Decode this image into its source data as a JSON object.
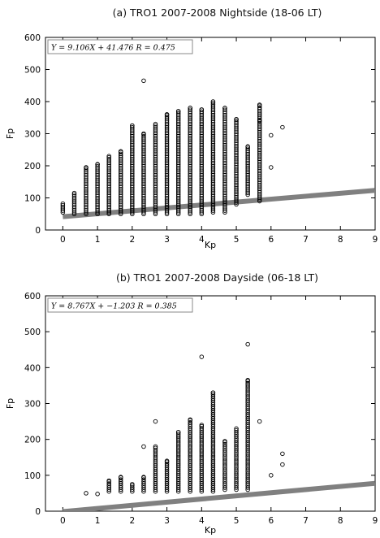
{
  "chart_data": [
    {
      "type": "scatter",
      "title": "(a)  TRO1   2007-2008   Nightside (18-06 LT)",
      "xlabel": "Kp",
      "ylabel": "Fp",
      "xlim": [
        -0.5,
        9
      ],
      "ylim": [
        0,
        600
      ],
      "xticks": [
        0,
        1,
        2,
        3,
        4,
        5,
        6,
        7,
        8,
        9
      ],
      "yticks": [
        0,
        100,
        200,
        300,
        400,
        500,
        600
      ],
      "grid": false,
      "annotation": "Y = 9.106X + 41.476     R = 0.475",
      "fit": {
        "slope": 9.106,
        "intercept": 41.476,
        "r": 0.475,
        "color": "#808080"
      },
      "columns": [
        {
          "x": 0.0,
          "min": 55,
          "max": 82
        },
        {
          "x": 0.33,
          "min": 50,
          "max": 115
        },
        {
          "x": 0.67,
          "min": 50,
          "max": 195
        },
        {
          "x": 1.0,
          "min": 50,
          "max": 205
        },
        {
          "x": 1.33,
          "min": 50,
          "max": 230
        },
        {
          "x": 1.67,
          "min": 50,
          "max": 245
        },
        {
          "x": 2.0,
          "min": 50,
          "max": 325
        },
        {
          "x": 2.33,
          "min": 50,
          "max": 300
        },
        {
          "x": 2.67,
          "min": 50,
          "max": 330
        },
        {
          "x": 3.0,
          "min": 50,
          "max": 360
        },
        {
          "x": 3.33,
          "min": 50,
          "max": 370
        },
        {
          "x": 3.67,
          "min": 50,
          "max": 380
        },
        {
          "x": 4.0,
          "min": 50,
          "max": 375
        },
        {
          "x": 4.33,
          "min": 55,
          "max": 400
        },
        {
          "x": 4.67,
          "min": 55,
          "max": 380
        },
        {
          "x": 5.0,
          "min": 80,
          "max": 345
        },
        {
          "x": 5.33,
          "min": 110,
          "max": 260
        },
        {
          "x": 5.67,
          "min": 90,
          "max": 390
        }
      ],
      "outliers": [
        {
          "x": 2.33,
          "y": 465
        },
        {
          "x": 6.0,
          "y": 195
        },
        {
          "x": 6.0,
          "y": 295
        },
        {
          "x": 6.33,
          "y": 320
        },
        {
          "x": 5.67,
          "y": 340
        }
      ],
      "marker": "open-circle",
      "marker_color": "#000000"
    },
    {
      "type": "scatter",
      "title": "(b)  TRO1   2007-2008   Dayside (06-18 LT)",
      "xlabel": "Kp",
      "ylabel": "Fp",
      "xlim": [
        -0.5,
        9
      ],
      "ylim": [
        0,
        600
      ],
      "xticks": [
        0,
        1,
        2,
        3,
        4,
        5,
        6,
        7,
        8,
        9
      ],
      "yticks": [
        0,
        100,
        200,
        300,
        400,
        500,
        600
      ],
      "grid": false,
      "annotation": "Y = 8.767X + −1.203     R = 0.385",
      "fit": {
        "slope": 8.767,
        "intercept": -1.203,
        "r": 0.385,
        "color": "#808080"
      },
      "columns": [
        {
          "x": 1.33,
          "min": 55,
          "max": 85
        },
        {
          "x": 1.67,
          "min": 55,
          "max": 95
        },
        {
          "x": 2.0,
          "min": 55,
          "max": 75
        },
        {
          "x": 2.33,
          "min": 55,
          "max": 95
        },
        {
          "x": 2.67,
          "min": 55,
          "max": 180
        },
        {
          "x": 3.0,
          "min": 55,
          "max": 140
        },
        {
          "x": 3.33,
          "min": 55,
          "max": 220
        },
        {
          "x": 3.67,
          "min": 55,
          "max": 255
        },
        {
          "x": 4.0,
          "min": 55,
          "max": 240
        },
        {
          "x": 4.33,
          "min": 55,
          "max": 330
        },
        {
          "x": 4.67,
          "min": 60,
          "max": 195
        },
        {
          "x": 5.0,
          "min": 60,
          "max": 230
        },
        {
          "x": 5.33,
          "min": 60,
          "max": 365
        }
      ],
      "outliers": [
        {
          "x": 0.67,
          "y": 50
        },
        {
          "x": 1.0,
          "y": 48
        },
        {
          "x": 2.33,
          "y": 180
        },
        {
          "x": 2.67,
          "y": 250
        },
        {
          "x": 4.0,
          "y": 430
        },
        {
          "x": 5.33,
          "y": 465
        },
        {
          "x": 5.67,
          "y": 250
        },
        {
          "x": 6.0,
          "y": 100
        },
        {
          "x": 6.33,
          "y": 130
        },
        {
          "x": 6.33,
          "y": 160
        }
      ],
      "marker": "open-circle",
      "marker_color": "#000000"
    }
  ]
}
